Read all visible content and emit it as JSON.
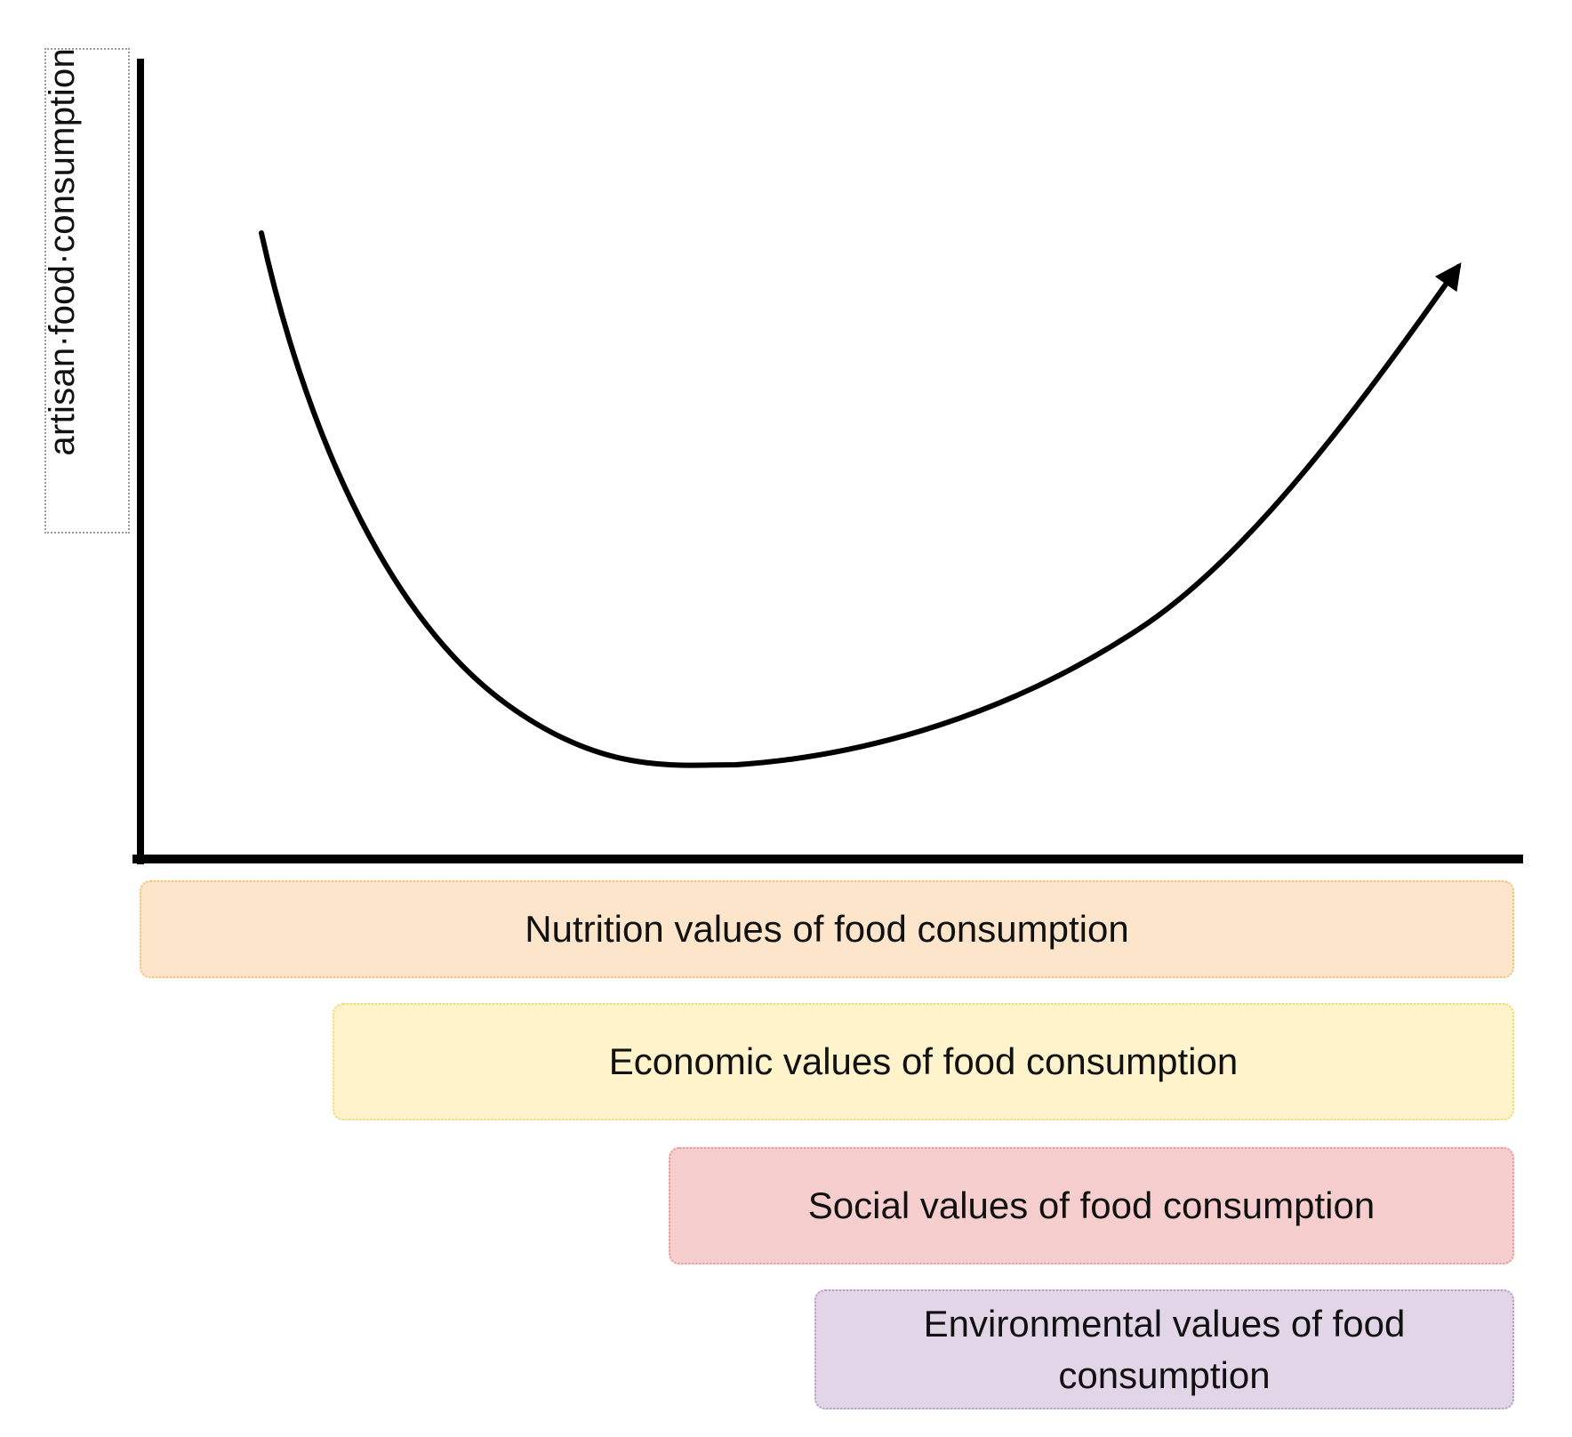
{
  "y_axis": {
    "label": "artisan·food·consumption"
  },
  "curve": {
    "description_shape": "u-shaped",
    "arrow_at": "end"
  },
  "bands": [
    {
      "key": "nutrition",
      "label": "Nutrition values of food consumption",
      "fill": "#fde5cc",
      "border": "#f2c271"
    },
    {
      "key": "economic",
      "label": "Economic values of food consumption",
      "fill": "#fff3cc",
      "border": "#f4d76b"
    },
    {
      "key": "social",
      "label": "Social values of food consumption",
      "fill": "#f6cece",
      "border": "#e49a9a"
    },
    {
      "key": "environmental",
      "label": "Environmental values of food consumption",
      "fill": "#e2d5e8",
      "border": "#b79ac7"
    }
  ],
  "colors": {
    "axis": "#000000",
    "curve": "#000000",
    "background": "#ffffff"
  }
}
